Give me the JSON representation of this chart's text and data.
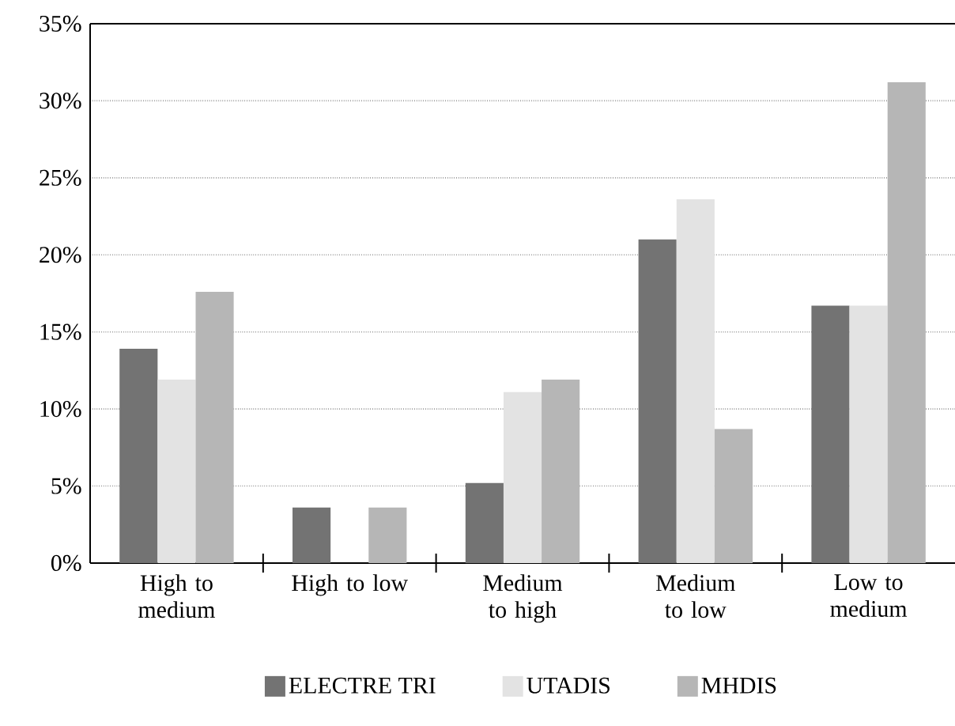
{
  "chart_data": {
    "type": "bar",
    "categories": [
      "High to medium",
      "High to low",
      "Medium to high",
      "Medium to low",
      "Low to medium"
    ],
    "series": [
      {
        "name": "ELECTRE TRI",
        "color": "#737373",
        "values": [
          13.9,
          3.6,
          5.2,
          21.0,
          16.7
        ]
      },
      {
        "name": "UTADIS",
        "color": "#e3e3e3",
        "values": [
          11.9,
          0,
          11.1,
          23.6,
          16.7
        ]
      },
      {
        "name": "MHDIS",
        "color": "#b6b6b6",
        "values": [
          17.6,
          3.6,
          11.9,
          8.7,
          31.2
        ]
      }
    ],
    "ylim": [
      0,
      35
    ],
    "yticks": [
      {
        "value": 0,
        "label": "0%"
      },
      {
        "value": 5,
        "label": "5%"
      },
      {
        "value": 10,
        "label": "10%"
      },
      {
        "value": 15,
        "label": "15%"
      },
      {
        "value": 20,
        "label": "20%"
      },
      {
        "value": 25,
        "label": "25%"
      },
      {
        "value": 30,
        "label": "30%"
      },
      {
        "value": 35,
        "label": "35%"
      }
    ],
    "grid": "y",
    "legend": "bottom"
  }
}
